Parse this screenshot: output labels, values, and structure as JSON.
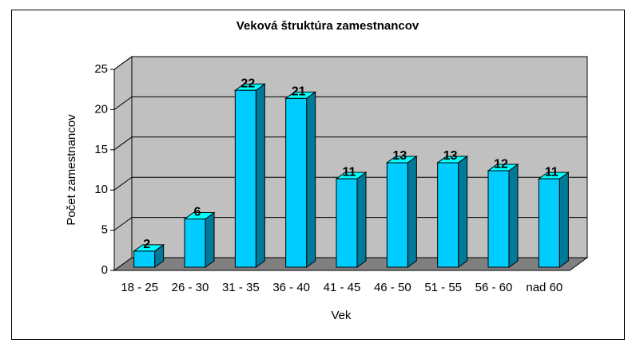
{
  "chart_data": {
    "type": "bar3d",
    "title": "Veková štruktúra zamestnancov",
    "x_label": "Vek",
    "y_label": "Počet zamestnancov",
    "categories": [
      "18 - 25",
      "26 - 30",
      "31 - 35",
      "36 - 40",
      "41 - 45",
      "46 - 50",
      "51 - 55",
      "56 - 60",
      "nad 60"
    ],
    "values": [
      2,
      6,
      22,
      21,
      11,
      13,
      13,
      12,
      11
    ],
    "color": "#00ccff",
    "ylim": [
      0,
      25
    ],
    "yticks": [
      0,
      5,
      10,
      15,
      20,
      25
    ],
    "grid": true
  }
}
